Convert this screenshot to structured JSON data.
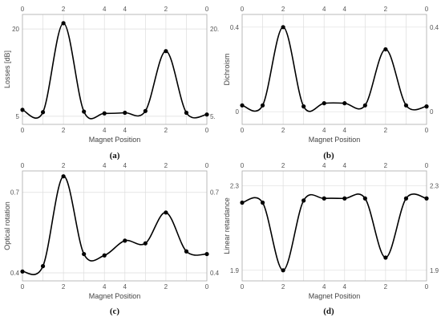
{
  "chart_data": [
    {
      "panel_label": "(a)",
      "type": "line",
      "xlabel": "Magnet Position",
      "ylabel": "Losses [dB]",
      "x_tick_labels_bottom": [
        "0",
        "2",
        "4",
        "4",
        "2",
        "0"
      ],
      "x_tick_labels_top": [
        "0",
        "2",
        "4",
        "4",
        "2",
        "0"
      ],
      "y_ticks_left": [
        {
          "value": 5,
          "label": "5"
        },
        {
          "value": 20,
          "label": "20"
        }
      ],
      "y_ticks_right": [
        {
          "value": 5,
          "label": "5."
        },
        {
          "value": 20,
          "label": "20."
        }
      ],
      "ylim": [
        3.6,
        22.5
      ],
      "points": [
        {
          "position": 0,
          "value": 6.1
        },
        {
          "position": 1,
          "value": 5.7
        },
        {
          "position": 2,
          "value": 21.0
        },
        {
          "position": 3,
          "value": 5.8
        },
        {
          "position": 4,
          "value": 5.5
        },
        {
          "position": 5,
          "value": 5.6
        },
        {
          "position": 6,
          "value": 5.9
        },
        {
          "position": 7,
          "value": 16.2
        },
        {
          "position": 8,
          "value": 5.6
        },
        {
          "position": 9,
          "value": 5.3
        }
      ]
    },
    {
      "panel_label": "(b)",
      "type": "line",
      "xlabel": "Magnet Position",
      "ylabel": "Dichroism",
      "x_tick_labels_bottom": [
        "0",
        "2",
        "4",
        "4",
        "2",
        "0"
      ],
      "x_tick_labels_top": [
        "0",
        "2",
        "4",
        "4",
        "2",
        "0"
      ],
      "y_ticks_left": [
        {
          "value": 0,
          "label": "0"
        },
        {
          "value": 0.4,
          "label": "0.4"
        }
      ],
      "y_ticks_right": [
        {
          "value": 0,
          "label": "0"
        },
        {
          "value": 0.4,
          "label": "0.4"
        }
      ],
      "ylim": [
        -0.06,
        0.46
      ],
      "points": [
        {
          "position": 0,
          "value": 0.03
        },
        {
          "position": 1,
          "value": 0.03
        },
        {
          "position": 2,
          "value": 0.4
        },
        {
          "position": 3,
          "value": 0.025
        },
        {
          "position": 4,
          "value": 0.04
        },
        {
          "position": 5,
          "value": 0.04
        },
        {
          "position": 6,
          "value": 0.03
        },
        {
          "position": 7,
          "value": 0.295
        },
        {
          "position": 8,
          "value": 0.03
        },
        {
          "position": 9,
          "value": 0.025
        }
      ]
    },
    {
      "panel_label": "(c)",
      "type": "line",
      "xlabel": "Magnet Position",
      "ylabel": "Optical rotation",
      "x_tick_labels_bottom": [
        "0",
        "2",
        "4",
        "4",
        "2",
        "0"
      ],
      "x_tick_labels_top": [
        "0",
        "2",
        "4",
        "4",
        "2",
        "0"
      ],
      "y_ticks_left": [
        {
          "value": 0.4,
          "label": "0.4"
        },
        {
          "value": 0.7,
          "label": "0.7"
        }
      ],
      "y_ticks_right": [
        {
          "value": 0.4,
          "label": "0.4"
        },
        {
          "value": 0.7,
          "label": "0.7"
        }
      ],
      "ylim": [
        0.37,
        0.78
      ],
      "points": [
        {
          "position": 0,
          "value": 0.405
        },
        {
          "position": 1,
          "value": 0.425
        },
        {
          "position": 2,
          "value": 0.76
        },
        {
          "position": 3,
          "value": 0.47
        },
        {
          "position": 4,
          "value": 0.465
        },
        {
          "position": 5,
          "value": 0.52
        },
        {
          "position": 6,
          "value": 0.51
        },
        {
          "position": 7,
          "value": 0.625
        },
        {
          "position": 8,
          "value": 0.48
        },
        {
          "position": 9,
          "value": 0.47
        }
      ]
    },
    {
      "panel_label": "(d)",
      "type": "line",
      "xlabel": "Magnet Position",
      "ylabel": "Linear retardance",
      "x_tick_labels_bottom": [
        "0",
        "2",
        "4",
        "4",
        "2",
        "0"
      ],
      "x_tick_labels_top": [
        "0",
        "2",
        "4",
        "4",
        "2",
        "0"
      ],
      "y_ticks_left": [
        {
          "value": 1.9,
          "label": "1.9"
        },
        {
          "value": 2.3,
          "label": "2.3"
        }
      ],
      "y_ticks_right": [
        {
          "value": 1.9,
          "label": "1.9"
        },
        {
          "value": 2.3,
          "label": "2.3"
        }
      ],
      "ylim": [
        1.85,
        2.37
      ],
      "points": [
        {
          "position": 0,
          "value": 2.22
        },
        {
          "position": 1,
          "value": 2.22
        },
        {
          "position": 2,
          "value": 1.9
        },
        {
          "position": 3,
          "value": 2.23
        },
        {
          "position": 4,
          "value": 2.24
        },
        {
          "position": 5,
          "value": 2.24
        },
        {
          "position": 6,
          "value": 2.24
        },
        {
          "position": 7,
          "value": 1.96
        },
        {
          "position": 8,
          "value": 2.24
        },
        {
          "position": 9,
          "value": 2.24
        }
      ]
    }
  ]
}
